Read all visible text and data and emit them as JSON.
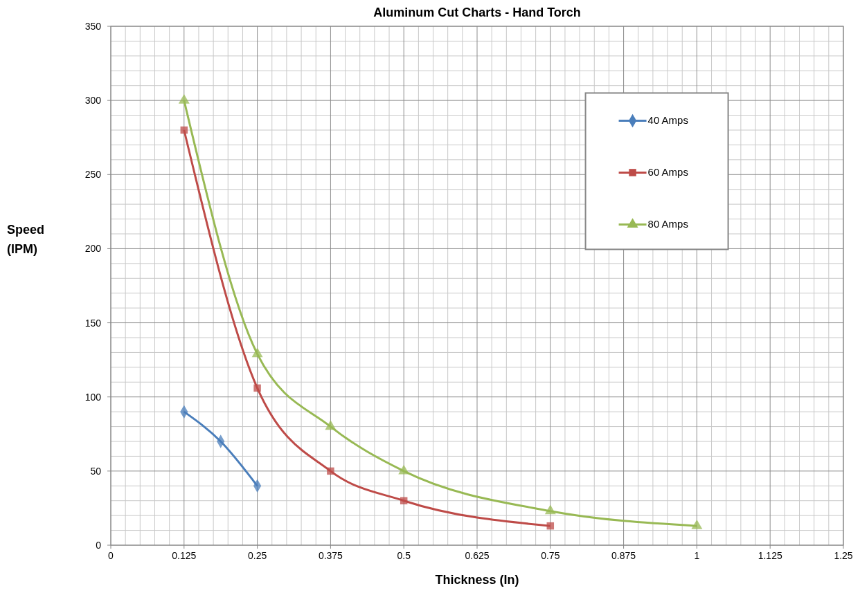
{
  "chart_data": {
    "type": "line",
    "title": "Aluminum Cut Charts - Hand Torch",
    "xlabel": "Thickness (In)",
    "ylabel": "Speed (IPM)",
    "xlim": [
      0,
      1.25
    ],
    "xticks": [
      0,
      0.125,
      0.25,
      0.375,
      0.5,
      0.625,
      0.75,
      0.875,
      1,
      1.125,
      1.25
    ],
    "ylim": [
      0,
      350
    ],
    "yticks": [
      0,
      50,
      100,
      150,
      200,
      250,
      300,
      350
    ],
    "grid": true,
    "legend": "top right",
    "series": [
      {
        "name": "40 Amps",
        "color": "#4a7ebb",
        "marker": "diamond",
        "x": [
          0.125,
          0.1875,
          0.25
        ],
        "values": [
          90,
          70,
          40
        ]
      },
      {
        "name": "60 Amps",
        "color": "#be4b48",
        "marker": "square",
        "x": [
          0.125,
          0.25,
          0.375,
          0.5,
          0.75
        ],
        "values": [
          280,
          106,
          50,
          30,
          13
        ]
      },
      {
        "name": "80 Amps",
        "color": "#98b954",
        "marker": "triangle",
        "x": [
          0.125,
          0.25,
          0.375,
          0.5,
          0.75,
          1
        ],
        "values": [
          300,
          129,
          80,
          50,
          23,
          13
        ]
      }
    ]
  }
}
